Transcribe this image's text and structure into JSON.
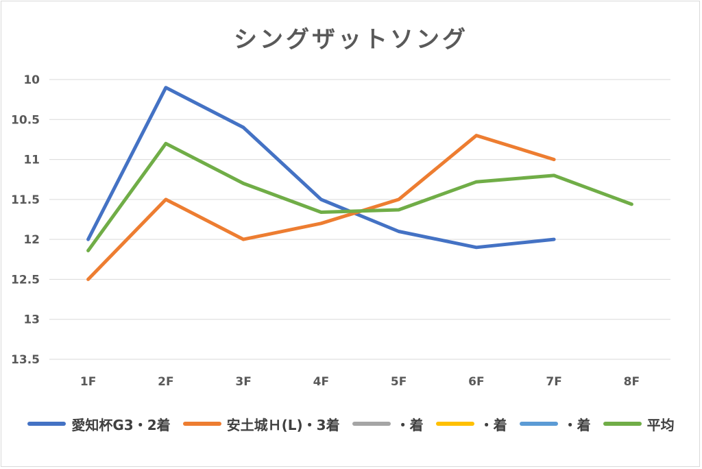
{
  "chart_data": {
    "type": "line",
    "title": "シングザットソング",
    "categories": [
      "1F",
      "2F",
      "3F",
      "4F",
      "5F",
      "6F",
      "7F",
      "8F"
    ],
    "ylim": [
      10,
      13.5
    ],
    "y_axis_reversed": true,
    "y_ticks": [
      "10",
      "10.5",
      "11",
      "11.5",
      "12",
      "12.5",
      "13",
      "13.5"
    ],
    "grid": true,
    "legend_position": "bottom",
    "series": [
      {
        "name": "愛知杯G3・2着",
        "color": "#4472C4",
        "values": [
          12.0,
          10.1,
          10.6,
          11.5,
          11.9,
          12.1,
          12.0,
          null
        ]
      },
      {
        "name": "安土城Ｈ(L)・3着",
        "color": "#ED7D31",
        "values": [
          12.5,
          11.5,
          12.0,
          11.8,
          11.5,
          10.7,
          11.0,
          null
        ]
      },
      {
        "name": "・着",
        "color": "#A5A5A5",
        "values": [
          null,
          null,
          null,
          null,
          null,
          null,
          null,
          null
        ]
      },
      {
        "name": "・着",
        "color": "#FFC000",
        "values": [
          null,
          null,
          null,
          null,
          null,
          null,
          null,
          null
        ]
      },
      {
        "name": "・着",
        "color": "#5B9BD5",
        "values": [
          null,
          null,
          null,
          null,
          null,
          null,
          null,
          null
        ]
      },
      {
        "name": "平均",
        "color": "#70AD47",
        "values": [
          12.14,
          10.8,
          11.3,
          11.66,
          11.63,
          11.28,
          11.2,
          11.56
        ]
      }
    ]
  }
}
